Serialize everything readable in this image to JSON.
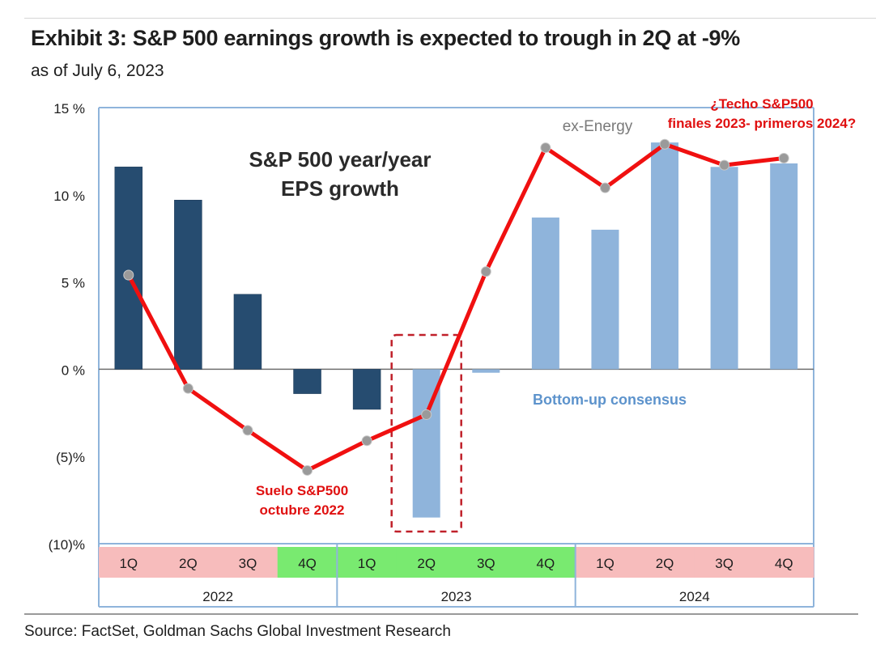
{
  "header": {
    "title": "Exhibit 3: S&P 500 earnings growth is expected to trough in 2Q at -9%",
    "subtitle": "as of July 6, 2023"
  },
  "footer": {
    "source": "Source: FactSet, Goldman Sachs Global Investment Research"
  },
  "chart_data": {
    "type": "bar",
    "title": "S&P 500 year/year EPS growth",
    "title_lines": [
      "S&P 500 year/year",
      "EPS growth"
    ],
    "categories": [
      "1Q",
      "2Q",
      "3Q",
      "4Q",
      "1Q",
      "2Q",
      "3Q",
      "4Q",
      "1Q",
      "2Q",
      "3Q",
      "4Q"
    ],
    "years": [
      {
        "label": "2022",
        "quarters": 4
      },
      {
        "label": "2023",
        "quarters": 4
      },
      {
        "label": "2024",
        "quarters": 4
      }
    ],
    "series": [
      {
        "name": "S&P 500 year/year EPS growth",
        "values": [
          11.6,
          9.7,
          4.3,
          -1.4,
          -2.3,
          -8.5,
          -0.2,
          8.7,
          8.0,
          13.0,
          11.6,
          11.8
        ]
      },
      {
        "name": "ex-Energy",
        "type": "line",
        "values": [
          5.4,
          -1.1,
          -3.5,
          -5.8,
          -4.1,
          -2.6,
          5.6,
          12.7,
          10.4,
          12.9,
          11.7,
          12.1
        ]
      }
    ],
    "bar_colors": [
      "#264c70",
      "#264c70",
      "#264c70",
      "#264c70",
      "#264c70",
      "#8fb4db",
      "#8fb4db",
      "#8fb4db",
      "#8fb4db",
      "#8fb4db",
      "#8fb4db",
      "#8fb4db"
    ],
    "quarter_label_colors": [
      "#f7bcbc",
      "#f7bcbc",
      "#f7bcbc",
      "#79ea70",
      "#79ea70",
      "#79ea70",
      "#79ea70",
      "#79ea70",
      "#f7bcbc",
      "#f7bcbc",
      "#f7bcbc",
      "#f7bcbc"
    ],
    "ylim": [
      -10,
      15
    ],
    "yticks": [
      15,
      10,
      5,
      0,
      -5,
      -10
    ],
    "ytick_labels": [
      "15 %",
      "10 %",
      "5 %",
      "0 %",
      "(5)%",
      "(10)%"
    ],
    "grid": false,
    "line_color": "#f01010",
    "marker_color": "#9a9a9a",
    "highlight_index": 5,
    "annotations": {
      "ex_energy": "ex-Energy",
      "bottom_up": "Bottom-up consensus",
      "floor": [
        "Suelo S&P500",
        "octubre 2022"
      ],
      "ceiling": [
        "¿Techo S&P500",
        "finales 2023- primeros 2024?"
      ]
    }
  }
}
